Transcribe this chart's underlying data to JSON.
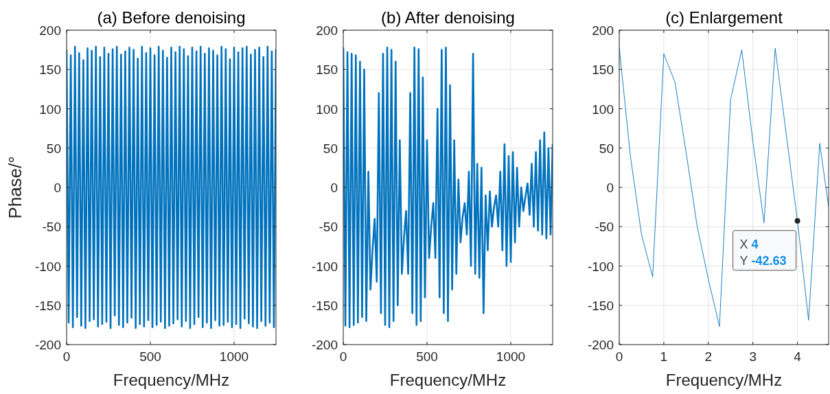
{
  "chart_data": [
    {
      "type": "line",
      "title": "(a) Before denoising",
      "xlabel": "Frequency/MHz",
      "ylabel": "Phase/°",
      "xlim": [
        0,
        1250
      ],
      "ylim": [
        -200,
        200
      ],
      "xticks": [
        0,
        500,
        1000
      ],
      "yticks": [
        -200,
        -150,
        -100,
        -50,
        0,
        50,
        100,
        150,
        200
      ],
      "grid": true,
      "x": [
        0,
        12.5,
        25,
        37.5,
        50,
        62.5,
        75,
        87.5,
        100,
        112.5,
        125,
        137.5,
        150,
        162.5,
        175,
        187.5,
        200,
        212.5,
        225,
        237.5,
        250,
        262.5,
        275,
        287.5,
        300,
        312.5,
        325,
        337.5,
        350,
        362.5,
        375,
        387.5,
        400,
        412.5,
        425,
        437.5,
        450,
        462.5,
        475,
        487.5,
        500,
        512.5,
        525,
        537.5,
        550,
        562.5,
        575,
        587.5,
        600,
        612.5,
        625,
        637.5,
        650,
        662.5,
        675,
        687.5,
        700,
        712.5,
        725,
        737.5,
        750,
        762.5,
        775,
        787.5,
        800,
        812.5,
        825,
        837.5,
        850,
        862.5,
        875,
        887.5,
        900,
        912.5,
        925,
        937.5,
        950,
        962.5,
        975,
        987.5,
        1000,
        1012.5,
        1025,
        1037.5,
        1050,
        1062.5,
        1075,
        1087.5,
        1100,
        1112.5,
        1125,
        1137.5,
        1150,
        1162.5,
        1175,
        1187.5,
        1200,
        1212.5,
        1225,
        1237.5,
        1250
      ],
      "series": [
        {
          "color": "#0072bd",
          "values": [
            175,
            -172,
            168,
            -178,
            179,
            -165,
            171,
            -176,
            162,
            -179,
            177,
            -170,
            174,
            -168,
            179,
            -177,
            166,
            -174,
            178,
            -171,
            170,
            -179,
            176,
            -163,
            179,
            -175,
            169,
            -178,
            173,
            -172,
            178,
            -166,
            175,
            -179,
            164,
            -174,
            179,
            -177,
            171,
            -169,
            177,
            -178,
            168,
            -175,
            179,
            -171,
            174,
            -179,
            165,
            -176,
            178,
            -173,
            172,
            -168,
            179,
            -177,
            176,
            -170,
            167,
            -179,
            178,
            -174,
            173,
            -165,
            179,
            -178,
            170,
            -172,
            177,
            -179,
            174,
            -169,
            168,
            -176,
            179,
            -175,
            176,
            -171,
            163,
            -178,
            178,
            -174,
            172,
            -179,
            177,
            -167,
            179,
            -173,
            169,
            -177,
            175,
            -179,
            178,
            -170,
            166,
            -176,
            179,
            -172,
            173,
            -178,
            176
          ]
        }
      ]
    },
    {
      "type": "line",
      "title": "(b) After denoising",
      "xlabel": "Frequency/MHz",
      "xlim": [
        0,
        1250
      ],
      "ylim": [
        -200,
        200
      ],
      "xticks": [
        0,
        500,
        1000
      ],
      "yticks": [
        -200,
        -150,
        -100,
        -50,
        0,
        50,
        100,
        150,
        200
      ],
      "grid": true,
      "x": [
        0,
        12.5,
        25,
        37.5,
        50,
        62.5,
        75,
        87.5,
        100,
        112.5,
        125,
        137.5,
        150,
        162.5,
        175,
        187.5,
        200,
        212.5,
        225,
        237.5,
        250,
        262.5,
        275,
        287.5,
        300,
        312.5,
        325,
        337.5,
        350,
        362.5,
        375,
        387.5,
        400,
        412.5,
        425,
        437.5,
        450,
        462.5,
        475,
        487.5,
        500,
        512.5,
        525,
        537.5,
        550,
        562.5,
        575,
        587.5,
        600,
        612.5,
        625,
        637.5,
        650,
        662.5,
        675,
        687.5,
        700,
        712.5,
        725,
        737.5,
        750,
        762.5,
        775,
        787.5,
        800,
        812.5,
        825,
        837.5,
        850,
        862.5,
        875,
        887.5,
        900,
        912.5,
        925,
        937.5,
        950,
        962.5,
        975,
        987.5,
        1000,
        1012.5,
        1025,
        1037.5,
        1050,
        1062.5,
        1075,
        1087.5,
        1100,
        1112.5,
        1125,
        1137.5,
        1150,
        1162.5,
        1175,
        1187.5,
        1200,
        1212.5,
        1225,
        1237.5,
        1250
      ],
      "series": [
        {
          "color": "#0072bd",
          "values": [
            178,
            -176,
            172,
            -178,
            170,
            -175,
            168,
            -172,
            160,
            -165,
            150,
            -170,
            20,
            -130,
            -78,
            -40,
            -120,
            120,
            -160,
            170,
            -175,
            178,
            -178,
            175,
            -170,
            160,
            -150,
            60,
            -110,
            -64,
            -30,
            -110,
            120,
            -160,
            178,
            -175,
            176,
            -170,
            140,
            -140,
            60,
            -90,
            -50,
            -20,
            -90,
            100,
            -140,
            175,
            -160,
            178,
            -170,
            130,
            -130,
            60,
            -110,
            10,
            -70,
            -38,
            -20,
            -60,
            20,
            -100,
            170,
            -110,
            30,
            -115,
            25,
            -160,
            -10,
            -80,
            -5,
            -50,
            -25,
            -10,
            -50,
            20,
            -80,
            55,
            -100,
            40,
            -95,
            45,
            -70,
            25,
            -50,
            0,
            -30,
            -12,
            5,
            -35,
            30,
            -50,
            45,
            -55,
            60,
            -60,
            70,
            -65,
            50,
            -60,
            55
          ]
        }
      ]
    },
    {
      "type": "line",
      "title": "(c) Enlargement",
      "xlabel": "Frequency/MHz",
      "xlim": [
        0,
        4.7
      ],
      "ylim": [
        -200,
        200
      ],
      "xticks": [
        0,
        1,
        2,
        3,
        4
      ],
      "yticks": [
        -200,
        -150,
        -100,
        -50,
        0,
        50,
        100,
        150,
        200
      ],
      "grid": true,
      "x": [
        0,
        0.25,
        0.5,
        0.75,
        1,
        1.25,
        1.5,
        1.75,
        2,
        2.25,
        2.5,
        2.75,
        3,
        3.25,
        3.5,
        3.75,
        4,
        4.25,
        4.5,
        4.7
      ],
      "series": [
        {
          "color": "#0072bd",
          "values": [
            178,
            40,
            -60,
            -114,
            170,
            134,
            45,
            -50,
            -117,
            -177,
            112,
            175,
            58,
            -45,
            177,
            67,
            -42.63,
            -169,
            56,
            -25
          ]
        }
      ],
      "annotations": [
        {
          "text": "X 4\nY -42.63",
          "x": 4,
          "y": -42.63
        }
      ]
    }
  ]
}
